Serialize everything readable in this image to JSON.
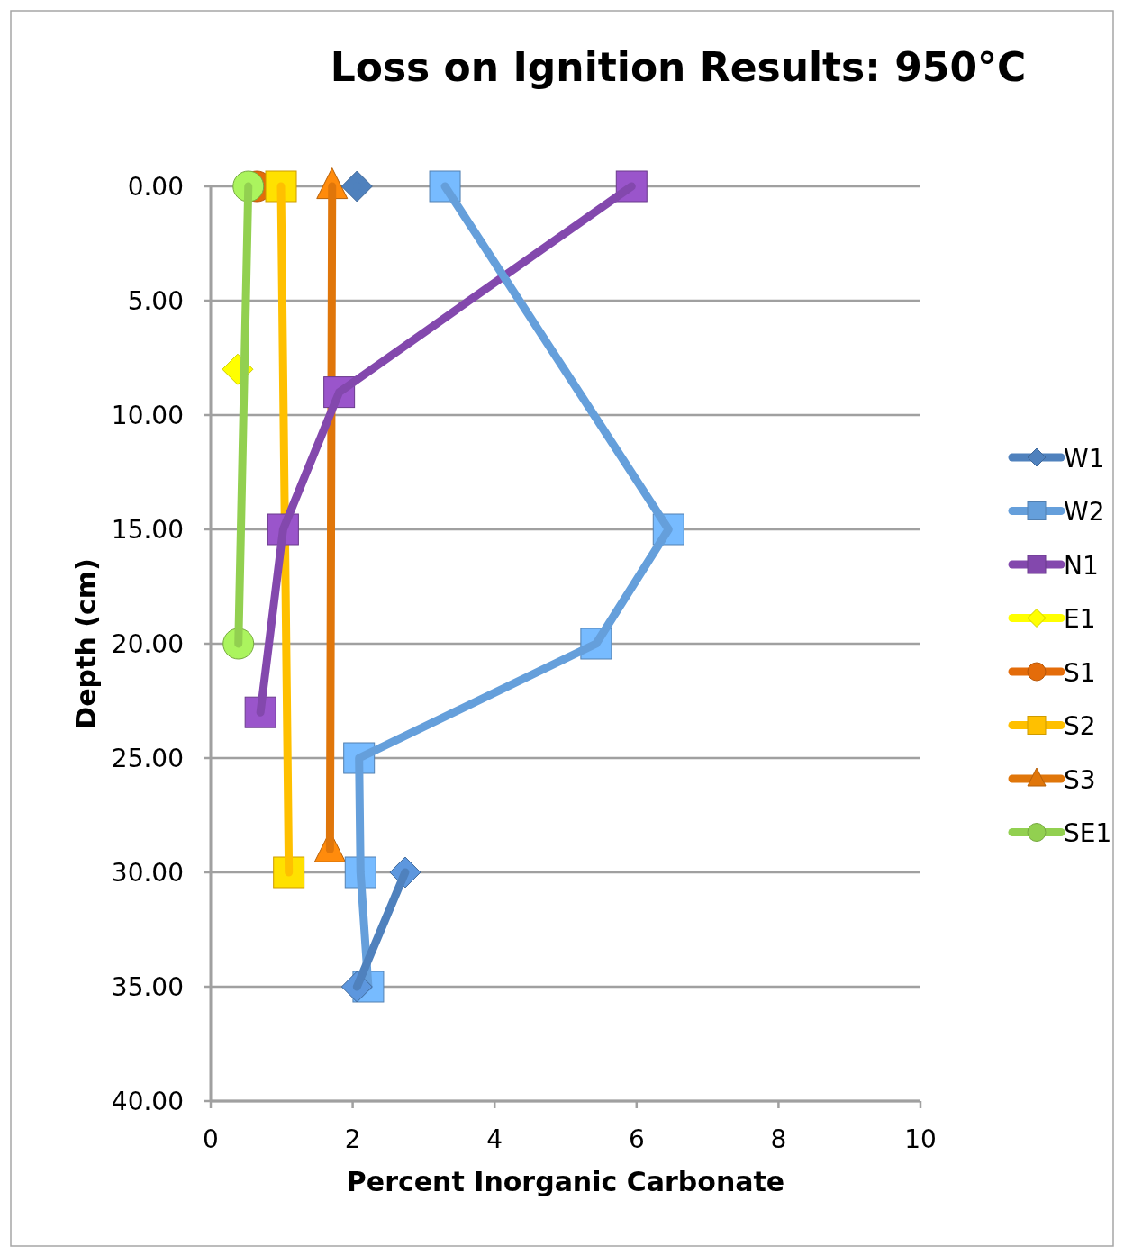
{
  "chart_data": {
    "type": "line",
    "title": "Loss on Ignition Results: 950°C",
    "xlabel": "Percent Inorganic Carbonate",
    "ylabel": "Depth (cm)",
    "xlim": [
      0,
      10
    ],
    "xticks": [
      0,
      2,
      4,
      6,
      8,
      10
    ],
    "ylim": [
      40,
      0
    ],
    "yticks": [
      {
        "value": 0,
        "label": "0.00"
      },
      {
        "value": 5,
        "label": "5.00"
      },
      {
        "value": 10,
        "label": "10.00"
      },
      {
        "value": 15,
        "label": "15.00"
      },
      {
        "value": 20,
        "label": "20.00"
      },
      {
        "value": 25,
        "label": "25.00"
      },
      {
        "value": 30,
        "label": "30.00"
      },
      {
        "value": 35,
        "label": "35.00"
      },
      {
        "value": 40,
        "label": "40.00"
      }
    ],
    "grid": "y",
    "legend": "right",
    "line_style": "solid",
    "series": [
      {
        "name": "W1",
        "color": "#4f81bd",
        "marker": "diamond",
        "x": [
          2.06,
          null,
          2.74,
          2.06
        ],
        "values": [
          0,
          null,
          30,
          35
        ]
      },
      {
        "name": "W2",
        "color": "#659fdb",
        "marker": "square",
        "x": [
          3.3,
          6.45,
          5.43,
          2.09,
          2.11,
          2.22
        ],
        "values": [
          0,
          15,
          20,
          25,
          30,
          35
        ]
      },
      {
        "name": "N1",
        "color": "#8348ad",
        "marker": "square",
        "x": [
          5.93,
          1.81,
          1.02,
          0.7
        ],
        "values": [
          0,
          9,
          15,
          23
        ]
      },
      {
        "name": "E1",
        "color": "#ffff00",
        "marker": "diamond",
        "x": [
          0.38
        ],
        "values": [
          8
        ]
      },
      {
        "name": "S1",
        "color": "#e46c0a",
        "marker": "circle",
        "x": [
          0.65
        ],
        "values": [
          0
        ]
      },
      {
        "name": "S2",
        "color": "#ffc000",
        "marker": "square",
        "x": [
          0.99,
          1.1
        ],
        "values": [
          0,
          30
        ]
      },
      {
        "name": "S3",
        "color": "#e0760a",
        "marker": "triangle",
        "x": [
          1.71,
          1.68
        ],
        "values": [
          0,
          29
        ]
      },
      {
        "name": "SE1",
        "color": "#92d050",
        "marker": "circle",
        "x": [
          0.53,
          0.39
        ],
        "values": [
          0,
          20
        ]
      }
    ]
  }
}
